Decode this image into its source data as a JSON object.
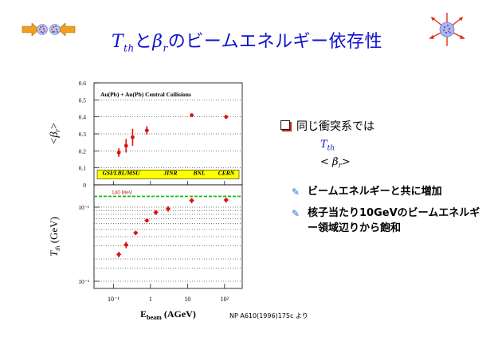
{
  "slide": {
    "title": {
      "sym_t": "T",
      "sym_t_sub": "th",
      "connector": "と",
      "sym_b": "β",
      "sym_b_sub": "r",
      "suffix": "のビームエネルギー依存性"
    },
    "bullets": {
      "main": "同じ衝突系では",
      "sym1": "T",
      "sym1_sub": "th",
      "sym2_open": "< ",
      "sym2": "β",
      "sym2_sub": "r",
      "sym2_close": ">",
      "sub1": "ビームエネルギーと共に増加",
      "sub2": "核子当たり10GeVのビームエネルギー領域辺りから飽和"
    },
    "reference": "NP A610(1996)175c  より",
    "colors": {
      "title": "#1010cc",
      "data": "#dd1111",
      "band": "#ffff00",
      "dashed": "#00bb00",
      "text": "#000000"
    }
  },
  "chart_data": [
    {
      "type": "scatter",
      "title": "Au(Pb) + Au(Pb) Central Collisions",
      "ylabel": "<β_r>",
      "ylabel_base": "<β",
      "ylabel_sub": "r",
      "ylabel_close": ">",
      "ylim": [
        0,
        0.6
      ],
      "yticks": [
        "0.6",
        "0.5",
        "0.4",
        "0.3",
        "0.2",
        "0.1",
        "0"
      ],
      "xscale": "log",
      "xlim": [
        0.03,
        300
      ],
      "series": [
        {
          "name": "<β_r>",
          "x": [
            0.14,
            0.22,
            0.33,
            0.8,
            13,
            110
          ],
          "y": [
            0.19,
            0.23,
            0.28,
            0.32,
            0.41,
            0.4
          ],
          "yerr": [
            0.025,
            0.04,
            0.05,
            0.025,
            0.005,
            0.005
          ]
        }
      ],
      "band_labels": [
        "GSI/LBL/MSU",
        "JINR",
        "BNL",
        "CERN"
      ]
    },
    {
      "type": "scatter",
      "ylabel": "T_th (GeV)",
      "ylabel_base": "T",
      "ylabel_sub": "th",
      "ylabel_unit": " (GeV)",
      "yscale": "log",
      "ylim": [
        0.008,
        0.2
      ],
      "yticks": [
        "10⁻¹",
        "10⁻²"
      ],
      "dashed_line_y": 0.14,
      "dashed_label": "140 MeV",
      "xlabel_main": "E",
      "xlabel_sub": "beam",
      "xlabel_unit": " (AGeV)",
      "xticks": [
        "10⁻¹",
        "1",
        "10",
        "10²"
      ],
      "xscale": "log",
      "xlim": [
        0.03,
        300
      ],
      "series": [
        {
          "name": "T_th",
          "x": [
            0.14,
            0.22,
            0.4,
            0.8,
            1.4,
            3.0,
            13,
            110
          ],
          "y": [
            0.023,
            0.031,
            0.045,
            0.066,
            0.085,
            0.095,
            0.123,
            0.125
          ],
          "yerr": [
            0.002,
            0.003,
            0.003,
            0.004,
            0.006,
            0.008,
            0.01,
            0.01
          ]
        }
      ]
    }
  ]
}
